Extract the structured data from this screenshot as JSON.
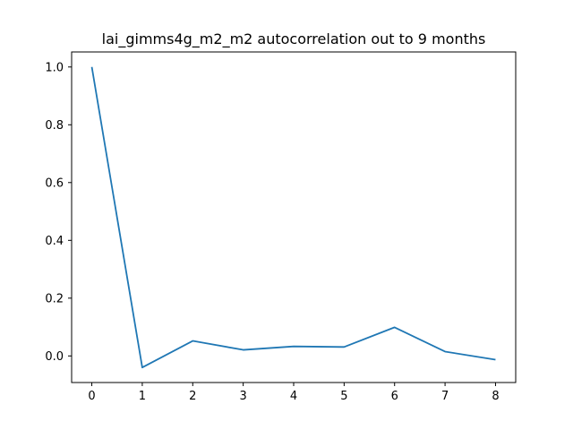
{
  "chart_data": {
    "type": "line",
    "title": "lai_gimms4g_m2_m2 autocorrelation out to 9 months",
    "xlabel": "",
    "ylabel": "",
    "x": [
      0,
      1,
      2,
      3,
      4,
      5,
      6,
      7,
      8
    ],
    "series": [
      {
        "name": "autocorrelation",
        "color": "#1f77b4",
        "values": [
          1.0,
          -0.04,
          0.052,
          0.021,
          0.033,
          0.031,
          0.099,
          0.015,
          -0.013
        ]
      }
    ],
    "xlim": [
      -0.4,
      8.4
    ],
    "ylim": [
      -0.092,
      1.052
    ],
    "xticks": [
      0,
      1,
      2,
      3,
      4,
      5,
      6,
      7,
      8
    ],
    "xtick_labels": [
      "0",
      "1",
      "2",
      "3",
      "4",
      "5",
      "6",
      "7",
      "8"
    ],
    "yticks": [
      0.0,
      0.2,
      0.4,
      0.6,
      0.8,
      1.0
    ],
    "ytick_labels": [
      "0.0",
      "0.2",
      "0.4",
      "0.6",
      "0.8",
      "1.0"
    ],
    "grid": false,
    "legend": "none"
  }
}
